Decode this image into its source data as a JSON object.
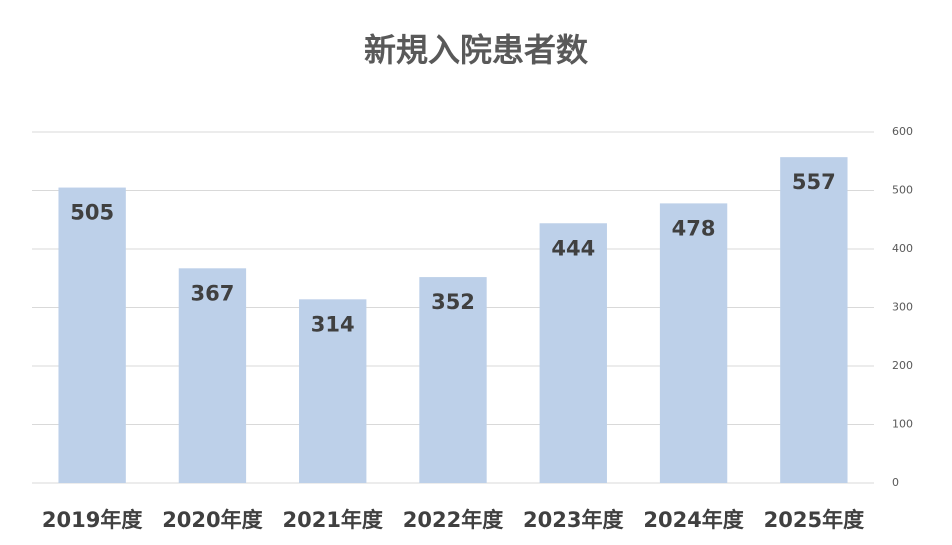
{
  "chart_data": {
    "type": "bar",
    "title": "新規入院患者数",
    "categories": [
      "2019年度",
      "2020年度",
      "2021年度",
      "2022年度",
      "2023年度",
      "2024年度",
      "2025年度"
    ],
    "values": [
      505,
      367,
      314,
      352,
      444,
      478,
      557
    ],
    "color": "#bdd0e9",
    "ylim": [
      0,
      600
    ],
    "yticks": [
      0,
      100,
      200,
      300,
      400,
      500,
      600
    ],
    "grid": true,
    "y_axis_side": "right"
  }
}
